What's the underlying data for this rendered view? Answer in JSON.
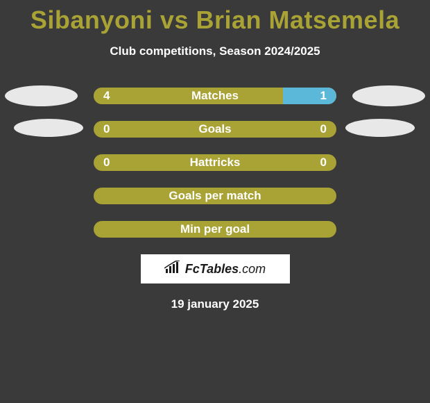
{
  "colors": {
    "background": "#3a3a3a",
    "accent": "#a9a235",
    "barOlive": "#a9a235",
    "barBlue": "#5cb8d8",
    "white": "#ffffff",
    "photoBg": "#e8e8e8",
    "dark": "#1a1a1a"
  },
  "header": {
    "title": "Sibanyoni vs Brian Matsemela",
    "subtitle": "Club competitions, Season 2024/2025"
  },
  "rows": [
    {
      "label": "Matches",
      "leftValue": "4",
      "rightValue": "1",
      "hasPhotos": true,
      "leftFillPct": 78,
      "rightFillPct": 22,
      "leftColor": "#a9a235",
      "rightColor": "#5cb8d8",
      "labelColor": "#ffffff"
    },
    {
      "label": "Goals",
      "leftValue": "0",
      "rightValue": "0",
      "hasPhotos": true,
      "photosStyle": "row2",
      "leftFillPct": 100,
      "rightFillPct": 0,
      "leftColor": "#a9a235",
      "rightColor": "#a9a235",
      "labelColor": "#ffffff"
    },
    {
      "label": "Hattricks",
      "leftValue": "0",
      "rightValue": "0",
      "hasPhotos": false,
      "leftFillPct": 100,
      "rightFillPct": 0,
      "leftColor": "#a9a235",
      "rightColor": "#a9a235",
      "labelColor": "#ffffff"
    },
    {
      "label": "Goals per match",
      "leftValue": "",
      "rightValue": "",
      "hasPhotos": false,
      "leftFillPct": 100,
      "rightFillPct": 0,
      "leftColor": "#a9a235",
      "rightColor": "#a9a235",
      "labelColor": "#ffffff"
    },
    {
      "label": "Min per goal",
      "leftValue": "",
      "rightValue": "",
      "hasPhotos": false,
      "leftFillPct": 100,
      "rightFillPct": 0,
      "leftColor": "#a9a235",
      "rightColor": "#a9a235",
      "labelColor": "#ffffff"
    }
  ],
  "footer": {
    "logoTextBold": "FcTables",
    "logoTextThin": ".com",
    "date": "19 january 2025"
  }
}
